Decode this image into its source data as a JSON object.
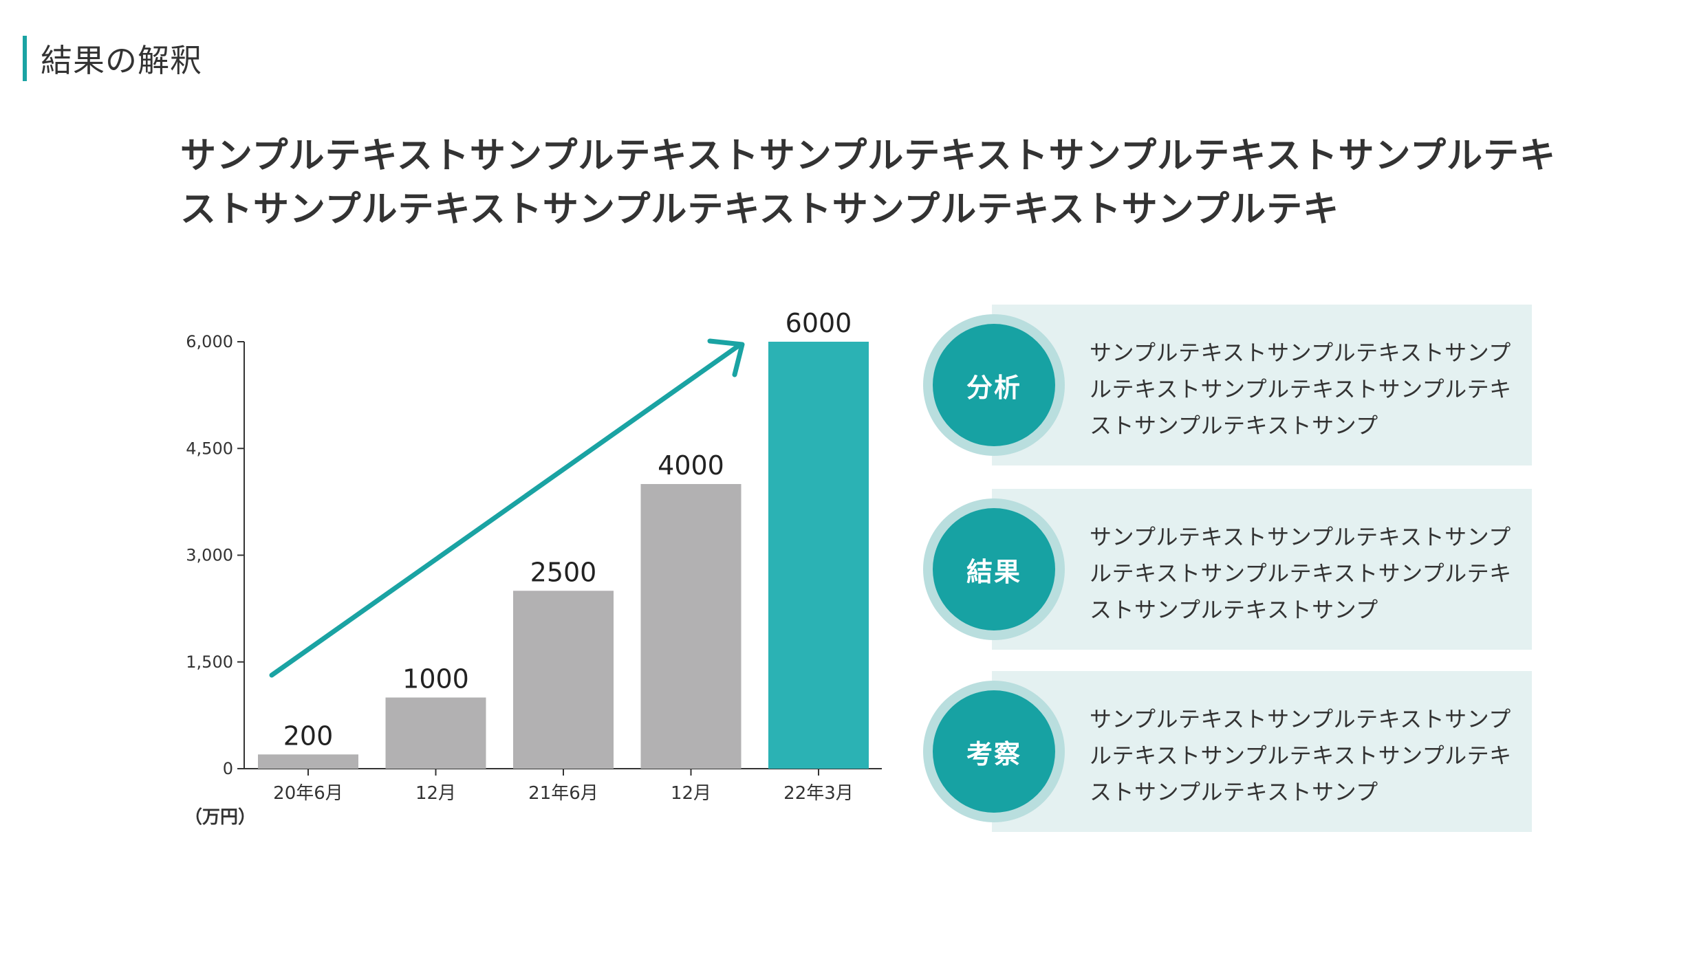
{
  "header": {
    "title": "結果の解釈"
  },
  "lead": {
    "text": "サンプルテキストサンプルテキストサンプルテキストサンプルテキストサンプルテキストサンプルテキストサンプルテキストサンプルテキストサンプルテキ"
  },
  "chart_data": {
    "type": "bar",
    "categories": [
      "20年6月",
      "12月",
      "21年6月",
      "12月",
      "22年3月"
    ],
    "values": [
      200,
      1000,
      2500,
      4000,
      6000
    ],
    "value_labels": [
      "200",
      "1000",
      "2500",
      "4000",
      "6000"
    ],
    "ylim": [
      0,
      6000
    ],
    "yticks": [
      0,
      1500,
      3000,
      4500,
      6000
    ],
    "ytick_labels": [
      "0",
      "1,500",
      "3,000",
      "4,500",
      "6,000"
    ],
    "unit_label": "（万円）",
    "grid": false,
    "colors": {
      "default": "#b2b1b2",
      "highlight": "#2bb2b4",
      "arrow": "#1aa3a3"
    },
    "highlight_index": 4,
    "annotation": "upward trend arrow"
  },
  "cards": [
    {
      "badge": "分析",
      "text": "サンプルテキストサンプルテキストサンプルテキストサンプルテキストサンプルテキストサンプルテキストサンプ"
    },
    {
      "badge": "結果",
      "text": "サンプルテキストサンプルテキストサンプルテキストサンプルテキストサンプルテキストサンプルテキストサンプ"
    },
    {
      "badge": "考察",
      "text": "サンプルテキストサンプルテキストサンプルテキストサンプルテキストサンプルテキストサンプルテキストサンプ"
    }
  ]
}
